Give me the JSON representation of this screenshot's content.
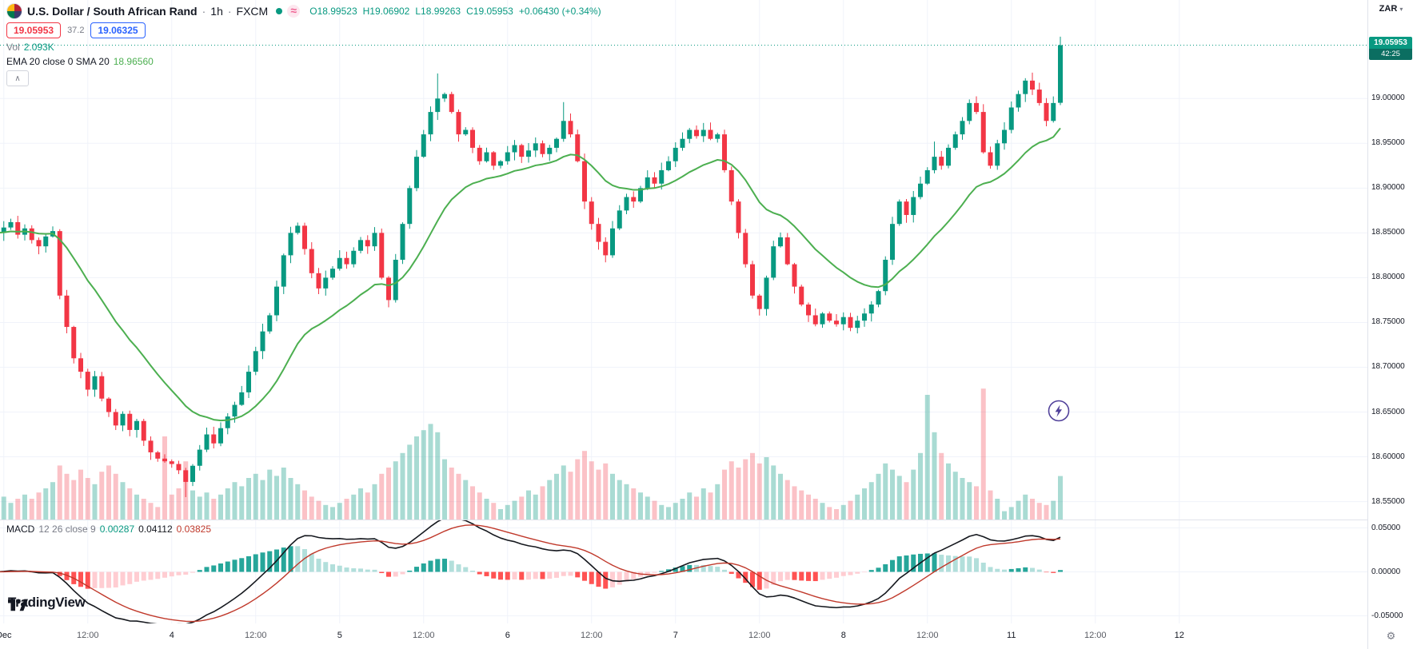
{
  "header": {
    "symbol_title": "U.S. Dollar / South African Rand",
    "separator": "·",
    "timeframe": "1h",
    "exchange": "FXCM",
    "ohlc": {
      "o_label": "O",
      "o": "18.99523",
      "h_label": "H",
      "h": "19.06902",
      "l_label": "L",
      "l": "18.99263",
      "c_label": "C",
      "c": "19.05953",
      "change": "+0.06430 (+0.34%)"
    },
    "bid": "19.05953",
    "spread": "37.2",
    "ask": "19.06325",
    "vol_label": "Vol",
    "vol_value": "2.093K",
    "ma_legend": "EMA 20 close 0 SMA 20",
    "ma_value": "18.96560"
  },
  "macd_legend": {
    "title": "MACD",
    "params": "12 26 close 9",
    "hist_value": "0.00287",
    "macd_value": "0.04112",
    "signal_value": "0.03825"
  },
  "right_axis": {
    "currency": "ZAR",
    "current_price": "19.05953",
    "countdown": "42:25"
  },
  "watermark": "TradingView",
  "icons": {
    "caret_down": "▾",
    "gear": "⚙",
    "chevron_up": "∧",
    "wave": "≈"
  },
  "colors": {
    "up": "#089981",
    "down": "#f23645",
    "vol_up": "rgba(8,153,129,0.35)",
    "vol_down": "rgba(242,54,69,0.30)",
    "ema": "#4caf50",
    "macd_line": "#15181e",
    "signal_line": "#c0392b",
    "hist_up_strong": "#26a69a",
    "hist_up_weak": "#b2dfdb",
    "hist_down_strong": "#ff5252",
    "hist_down_weak": "#ffcdd2",
    "bid": "#f23645",
    "ask": "#2962ff",
    "grid": "#f0f3fa",
    "price_badge_bg": "#089981",
    "countdown_bg": "#0b6e61",
    "accent_pink": "#f06292"
  },
  "chart_data": {
    "type": "candlestick",
    "symbol": "USD/ZAR",
    "interval": "1h",
    "exchange": "FXCM",
    "price_axis_top": 19.11,
    "price_axis_bottom": 18.53,
    "price_grid_labels": [
      "19.00000",
      "18.95000",
      "18.90000",
      "18.85000",
      "18.80000",
      "18.75000",
      "18.70000",
      "18.65000",
      "18.60000",
      "18.55000"
    ],
    "macd_axis_labels": [
      {
        "text": "0.05000",
        "value": 0.05
      },
      {
        "text": "0.00000",
        "value": 0.0
      },
      {
        "text": "-0.05000",
        "value": -0.05
      }
    ],
    "time_labels": [
      {
        "text": "Dec",
        "i": 1,
        "major": true
      },
      {
        "text": "12:00",
        "i": 13,
        "major": false
      },
      {
        "text": "4",
        "i": 25,
        "major": true
      },
      {
        "text": "12:00",
        "i": 37,
        "major": false
      },
      {
        "text": "5",
        "i": 49,
        "major": true
      },
      {
        "text": "12:00",
        "i": 61,
        "major": false
      },
      {
        "text": "6",
        "i": 73,
        "major": true
      },
      {
        "text": "12:00",
        "i": 85,
        "major": false
      },
      {
        "text": "7",
        "i": 97,
        "major": true
      },
      {
        "text": "12:00",
        "i": 109,
        "major": false
      },
      {
        "text": "8",
        "i": 121,
        "major": true
      },
      {
        "text": "12:00",
        "i": 133,
        "major": false
      },
      {
        "text": "11",
        "i": 145,
        "major": true
      },
      {
        "text": "12:00",
        "i": 157,
        "major": false
      },
      {
        "text": "12",
        "i": 169,
        "major": true
      }
    ],
    "indicators": {
      "ma": "EMA/SMA 20",
      "macd_params": [
        12,
        26,
        9
      ]
    },
    "current_price": 19.05953,
    "first_open": 18.845,
    "open_rule": "previous_close",
    "closes": [
      18.85,
      18.856,
      18.862,
      18.848,
      18.855,
      18.842,
      18.835,
      18.846,
      18.852,
      18.78,
      18.745,
      18.71,
      18.695,
      18.675,
      18.69,
      18.665,
      18.65,
      18.635,
      18.648,
      18.63,
      18.64,
      18.618,
      18.605,
      18.598,
      18.595,
      18.592,
      18.585,
      18.572,
      18.59,
      18.608,
      18.625,
      18.615,
      18.632,
      18.645,
      18.658,
      18.672,
      18.695,
      18.718,
      18.74,
      18.758,
      18.79,
      18.825,
      18.85,
      18.858,
      18.832,
      18.805,
      18.788,
      18.8,
      18.81,
      18.822,
      18.815,
      18.83,
      18.842,
      18.835,
      18.85,
      18.8,
      18.775,
      18.82,
      18.86,
      18.9,
      18.935,
      18.96,
      18.985,
      19.0,
      19.005,
      18.985,
      18.96,
      18.965,
      18.945,
      18.93,
      18.94,
      18.925,
      18.93,
      18.94,
      18.948,
      18.935,
      18.942,
      18.95,
      18.938,
      18.945,
      18.955,
      18.975,
      18.96,
      18.93,
      18.885,
      18.86,
      18.84,
      18.825,
      18.855,
      18.875,
      18.89,
      18.885,
      18.9,
      18.912,
      18.905,
      18.92,
      18.93,
      18.945,
      18.955,
      18.965,
      18.958,
      18.965,
      18.955,
      18.96,
      18.92,
      18.885,
      18.85,
      18.815,
      18.78,
      18.765,
      18.8,
      18.835,
      18.845,
      18.815,
      18.79,
      18.77,
      18.758,
      18.748,
      18.76,
      18.752,
      18.748,
      18.756,
      18.744,
      18.752,
      18.76,
      18.77,
      18.785,
      18.82,
      18.86,
      18.885,
      18.87,
      18.89,
      18.905,
      18.92,
      18.935,
      18.925,
      18.945,
      18.96,
      18.975,
      18.995,
      18.985,
      18.94,
      18.925,
      18.95,
      18.965,
      18.99,
      19.005,
      19.02,
      19.01,
      18.995,
      18.975,
      18.995,
      19.05953
    ],
    "volumes_k": [
      0.9,
      1.1,
      0.8,
      1.0,
      1.2,
      1.0,
      1.3,
      1.5,
      1.8,
      2.6,
      2.2,
      1.9,
      2.4,
      2.0,
      1.7,
      2.3,
      2.6,
      2.2,
      1.8,
      1.5,
      1.2,
      1.0,
      0.8,
      0.6,
      4.0,
      1.2,
      1.5,
      2.8,
      1.4,
      1.1,
      1.3,
      1.0,
      1.2,
      1.5,
      1.8,
      1.6,
      2.0,
      2.2,
      1.9,
      2.4,
      2.1,
      2.5,
      2.0,
      1.7,
      1.4,
      1.1,
      0.9,
      0.7,
      0.6,
      0.8,
      1.0,
      1.2,
      1.5,
      1.3,
      1.7,
      2.2,
      2.5,
      2.8,
      3.2,
      3.6,
      4.0,
      4.3,
      4.6,
      4.2,
      2.9,
      2.5,
      2.2,
      1.9,
      1.6,
      1.3,
      1.0,
      0.8,
      0.5,
      0.7,
      0.9,
      1.1,
      1.4,
      1.2,
      1.6,
      1.9,
      2.2,
      2.6,
      2.3,
      2.9,
      3.3,
      2.8,
      2.4,
      2.7,
      2.2,
      1.9,
      1.7,
      1.5,
      1.3,
      1.1,
      0.9,
      0.7,
      0.6,
      0.8,
      1.0,
      1.3,
      1.1,
      1.5,
      1.3,
      1.7,
      2.4,
      2.8,
      2.5,
      2.9,
      3.2,
      2.7,
      3.0,
      2.6,
      2.2,
      1.9,
      1.6,
      1.4,
      1.2,
      1.0,
      0.8,
      0.6,
      0.5,
      0.7,
      0.9,
      1.2,
      1.5,
      1.8,
      2.2,
      2.7,
      2.4,
      2.1,
      1.8,
      2.4,
      3.2,
      6.0,
      4.2,
      3.2,
      2.7,
      2.3,
      2.0,
      1.8,
      1.6,
      6.3,
      1.4,
      1.0,
      0.4,
      0.6,
      0.9,
      1.2,
      1.0,
      0.8,
      0.7,
      0.9,
      2.093
    ],
    "wick_overrides": [
      {
        "i": 27,
        "l": 18.555
      },
      {
        "i": 63,
        "h": 19.028
      },
      {
        "i": 81,
        "h": 18.996
      },
      {
        "i": 134,
        "h": 18.952
      },
      {
        "i": 152,
        "o": 18.99523,
        "h": 19.06902,
        "l": 18.99263,
        "c": 19.05953
      }
    ]
  }
}
